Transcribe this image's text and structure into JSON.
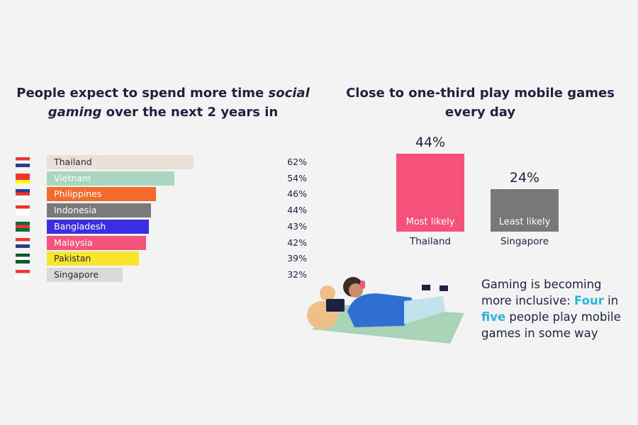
{
  "chart_data": [
    {
      "type": "bar",
      "orientation": "horizontal",
      "title": [
        {
          "text": "People expect to spend more time "
        },
        {
          "text": "social gaming",
          "italic": true
        },
        {
          "text": " over the next 2 years in"
        }
      ],
      "categories": [
        "Thailand",
        "Vietnam",
        "Philippines",
        "Indonesia",
        "Bangladesh",
        "Malaysia",
        "Pakistan",
        "Singapore"
      ],
      "values": [
        62,
        54,
        46,
        44,
        43,
        42,
        39,
        32
      ],
      "value_labels": [
        "62%",
        "54%",
        "46%",
        "44%",
        "43%",
        "42%",
        "39%",
        "32%"
      ],
      "colors": [
        "#e9e1d7",
        "#a9d6c0",
        "#f26b2d",
        "#7a7a7a",
        "#3a2fe0",
        "#f4547b",
        "#f7e52f",
        "#d9d9d9"
      ],
      "label_colors": [
        "#2a2a3a",
        "#ffffff",
        "#ffffff",
        "#ffffff",
        "#ffffff",
        "#ffffff",
        "#2a2a3a",
        "#2a2a3a"
      ]
    },
    {
      "type": "bar",
      "orientation": "vertical",
      "title": [
        {
          "text": "Close to one-third play mobile games every day"
        }
      ],
      "categories": [
        "Thailand",
        "Singapore"
      ],
      "values": [
        44,
        24
      ],
      "value_labels": [
        "44%",
        "24%"
      ],
      "annotations": [
        "Most likely",
        "Least likely"
      ],
      "colors": [
        "#f5527b",
        "#787878"
      ]
    }
  ],
  "callout": {
    "segments": [
      {
        "text": "Gaming is becoming more inclusive: "
      },
      {
        "text": "Four",
        "highlight": true
      },
      {
        "text": " in "
      },
      {
        "text": "five",
        "highlight": true
      },
      {
        "text": " people play mobile games in some way"
      }
    ],
    "highlight_color": "#29b6d6"
  }
}
